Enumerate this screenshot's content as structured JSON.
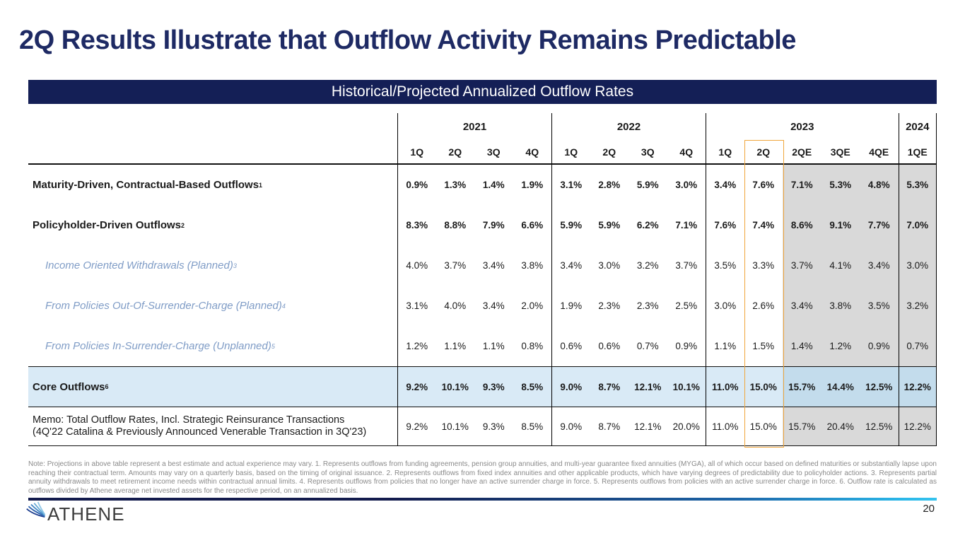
{
  "slide": {
    "title": "2Q Results Illustrate that Outflow Activity Remains Predictable",
    "page_number": "20",
    "logo_text": "ATHENE"
  },
  "colors": {
    "navy": "#141f56",
    "title_navy": "#1e2a64",
    "highlight_orange": "#f0a63c",
    "core_row_blue": "#d9eaf6",
    "core_row_blue_estimate": "#c3dcec",
    "estimate_gray": "#d9d9d9",
    "sub_label_blue": "#7f9cc6",
    "accent_cyan": "#29abe2"
  },
  "table": {
    "header_bar": "Historical/Projected Annualized Outflow Rates",
    "year_groups": [
      {
        "year": "2021",
        "quarters": [
          "1Q",
          "2Q",
          "3Q",
          "4Q"
        ]
      },
      {
        "year": "2022",
        "quarters": [
          "1Q",
          "2Q",
          "3Q",
          "4Q"
        ]
      },
      {
        "year": "2023",
        "quarters": [
          "1Q",
          "2Q",
          "2QE",
          "3QE",
          "4QE"
        ]
      },
      {
        "year": "2024",
        "quarters": [
          "1QE"
        ]
      }
    ],
    "estimate_columns": [
      10,
      11,
      12,
      13
    ],
    "highlight_column_index": 9,
    "rows": [
      {
        "label": "Maturity-Driven, Contractual-Based Outflows",
        "footnote_ref": "1",
        "style": "bold",
        "values": [
          "0.9%",
          "1.3%",
          "1.4%",
          "1.9%",
          "3.1%",
          "2.8%",
          "5.9%",
          "3.0%",
          "3.4%",
          "7.6%",
          "7.1%",
          "5.3%",
          "4.8%",
          "5.3%"
        ]
      },
      {
        "label": "Policyholder-Driven Outflows",
        "footnote_ref": "2",
        "style": "bold",
        "values": [
          "8.3%",
          "8.8%",
          "7.9%",
          "6.6%",
          "5.9%",
          "5.9%",
          "6.2%",
          "7.1%",
          "7.6%",
          "7.4%",
          "8.6%",
          "9.1%",
          "7.7%",
          "7.0%"
        ]
      },
      {
        "label": "Income Oriented Withdrawals (Planned)",
        "footnote_ref": "3",
        "style": "sub",
        "values": [
          "4.0%",
          "3.7%",
          "3.4%",
          "3.8%",
          "3.4%",
          "3.0%",
          "3.2%",
          "3.7%",
          "3.5%",
          "3.3%",
          "3.7%",
          "4.1%",
          "3.4%",
          "3.0%"
        ]
      },
      {
        "label": "From Policies Out-Of-Surrender-Charge (Planned)",
        "footnote_ref": "4",
        "style": "sub",
        "values": [
          "3.1%",
          "4.0%",
          "3.4%",
          "2.0%",
          "1.9%",
          "2.3%",
          "2.3%",
          "2.5%",
          "3.0%",
          "2.6%",
          "3.4%",
          "3.8%",
          "3.5%",
          "3.2%"
        ]
      },
      {
        "label": "From Policies In-Surrender-Charge (Unplanned)",
        "footnote_ref": "5",
        "style": "sub",
        "values": [
          "1.2%",
          "1.1%",
          "1.1%",
          "0.8%",
          "0.6%",
          "0.6%",
          "0.7%",
          "0.9%",
          "1.1%",
          "1.5%",
          "1.4%",
          "1.2%",
          "0.9%",
          "0.7%"
        ]
      },
      {
        "label": "Core Outflows",
        "footnote_ref": "6",
        "style": "core",
        "values": [
          "9.2%",
          "10.1%",
          "9.3%",
          "8.5%",
          "9.0%",
          "8.7%",
          "12.1%",
          "10.1%",
          "11.0%",
          "15.0%",
          "15.7%",
          "14.4%",
          "12.5%",
          "12.2%"
        ]
      },
      {
        "label_lines": [
          "Memo: Total Outflow Rates, Incl. Strategic Reinsurance Transactions",
          "(4Q'22 Catalina & Previously Announced Venerable Transaction in 3Q'23)"
        ],
        "style": "memo",
        "values": [
          "9.2%",
          "10.1%",
          "9.3%",
          "8.5%",
          "9.0%",
          "8.7%",
          "12.1%",
          "20.0%",
          "11.0%",
          "15.0%",
          "15.7%",
          "20.4%",
          "12.5%",
          "12.2%"
        ]
      }
    ]
  },
  "footnote": "Note: Projections in above table represent a best estimate and actual experience may vary. 1. Represents outflows from funding agreements, pension group annuities, and multi-year guarantee fixed annuities (MYGA), all of which occur based on defined maturities or substantially lapse upon reaching their contractual term. Amounts may vary on a quarterly basis, based on the timing of original issuance. 2. Represents outflows from fixed index annuities and other applicable products, which have varying degrees of predictability due to policyholder actions. 3. Represents partial annuity withdrawals to meet retirement income needs within contractual annual limits. 4. Represents outflows from policies that no longer have an active surrender charge in force. 5. Represents outflows from policies with an active surrender charge in force. 6. Outflow rate is calculated as outflows divided by Athene average net invested assets for the respective period, on an annualized basis."
}
